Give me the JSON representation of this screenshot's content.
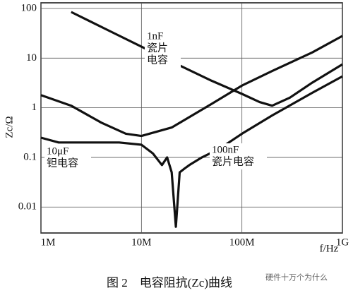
{
  "chart_data": {
    "type": "line",
    "log_x": true,
    "log_y": true,
    "grid": true,
    "y_label": "Zc/Ω",
    "x_label": "f/Hz",
    "caption": "图 2　电容阻抗(Zc)曲线",
    "watermark": "硬件十万个为什么",
    "xlim": [
      1000000,
      1000000000
    ],
    "ylim": [
      0.003,
      130
    ],
    "xticks": [
      {
        "value": 1000000,
        "label": "1M"
      },
      {
        "value": 10000000,
        "label": "10M"
      },
      {
        "value": 100000000,
        "label": "100M"
      },
      {
        "value": 1000000000,
        "label": "1G"
      }
    ],
    "yticks": [
      100,
      10,
      1,
      0.1,
      0.01
    ],
    "series": [
      {
        "label": [
          "1nF",
          "瓷片",
          "电容"
        ],
        "color": "#111111",
        "x": [
          2000000,
          5000000,
          10000000,
          20000000,
          50000000,
          100000000,
          150000000,
          200000000,
          300000000,
          500000000,
          1000000000
        ],
        "values": [
          85,
          34,
          17,
          8.5,
          3.5,
          1.9,
          1.3,
          1.1,
          1.6,
          3.2,
          7.5
        ]
      },
      {
        "label": [
          "10μF",
          "钽电容"
        ],
        "color": "#111111",
        "x": [
          1000000,
          2000000,
          4000000,
          7000000,
          10000000,
          20000000,
          50000000,
          100000000,
          200000000,
          500000000,
          1000000000
        ],
        "values": [
          1.8,
          1.1,
          0.5,
          0.3,
          0.27,
          0.4,
          1.2,
          2.8,
          5.5,
          13,
          28
        ]
      },
      {
        "label": [
          "100nF",
          "瓷片电容"
        ],
        "color": "#111111",
        "x": [
          1000000,
          1500000,
          3000000,
          6000000,
          10000000,
          13000000,
          16000000,
          18000000,
          20000000,
          22000000,
          24000000,
          27000000,
          30000000,
          40000000,
          60000000,
          100000000,
          200000000,
          500000000,
          1000000000
        ],
        "values": [
          0.25,
          0.2,
          0.2,
          0.2,
          0.18,
          0.12,
          0.07,
          0.1,
          0.05,
          0.004,
          0.05,
          0.06,
          0.07,
          0.1,
          0.15,
          0.3,
          0.7,
          2,
          4.3
        ]
      }
    ]
  }
}
